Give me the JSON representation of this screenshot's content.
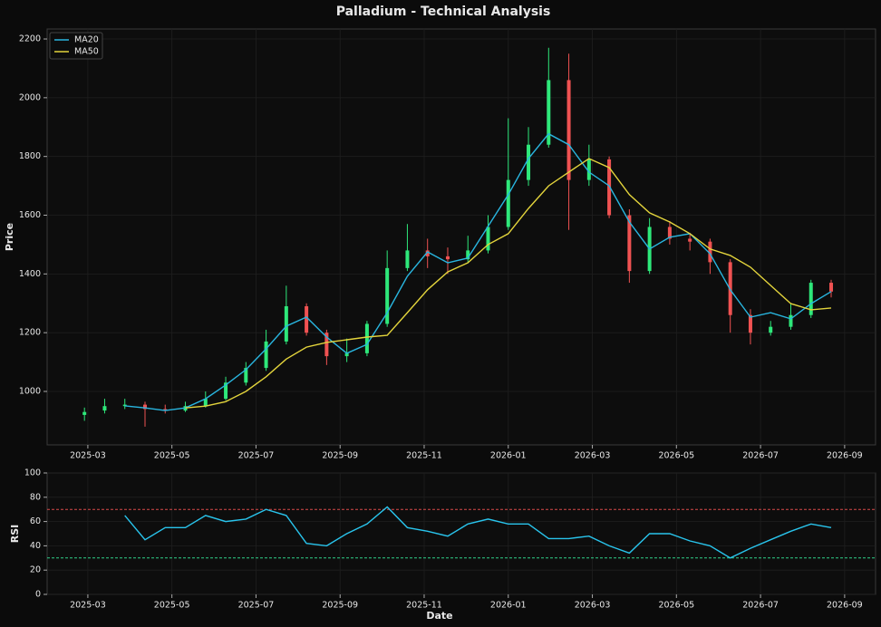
{
  "chart_data": [
    {
      "type": "candlestick",
      "title": "Palladium - Technical Analysis",
      "ylabel": "Price",
      "x": [
        2025.16,
        2025.2,
        2025.24,
        2025.28,
        2025.32,
        2025.36,
        2025.4,
        2025.44,
        2025.48,
        2025.52,
        2025.56,
        2025.6,
        2025.64,
        2025.68,
        2025.72,
        2025.76,
        2025.8,
        2025.84,
        2025.88,
        2025.92,
        2025.96,
        2026.0,
        2026.04,
        2026.08,
        2026.12,
        2026.16,
        2026.2,
        2026.24,
        2026.28,
        2026.32,
        2026.36,
        2026.4,
        2026.44,
        2026.48,
        2026.52,
        2026.56,
        2026.6,
        2026.64
      ],
      "open": [
        920,
        935,
        950,
        955,
        940,
        935,
        950,
        975,
        1030,
        1080,
        1170,
        1290,
        1200,
        1120,
        1130,
        1230,
        1420,
        1480,
        1460,
        1450,
        1480,
        1560,
        1720,
        1840,
        2060,
        1720,
        1790,
        1600,
        1410,
        1560,
        1520,
        1510,
        1440,
        1260,
        1200,
        1220,
        1260,
        1370
      ],
      "high": [
        945,
        975,
        975,
        965,
        955,
        965,
        1000,
        1050,
        1100,
        1210,
        1360,
        1300,
        1210,
        1180,
        1240,
        1480,
        1570,
        1520,
        1490,
        1530,
        1600,
        1930,
        1900,
        2170,
        2150,
        1840,
        1800,
        1620,
        1590,
        1580,
        1540,
        1520,
        1450,
        1280,
        1240,
        1300,
        1380,
        1380
      ],
      "low": [
        900,
        925,
        940,
        880,
        925,
        930,
        945,
        970,
        1020,
        1070,
        1160,
        1190,
        1090,
        1100,
        1120,
        1220,
        1410,
        1420,
        1400,
        1440,
        1470,
        1550,
        1700,
        1830,
        1550,
        1700,
        1590,
        1370,
        1400,
        1500,
        1480,
        1400,
        1200,
        1160,
        1190,
        1210,
        1250,
        1320
      ],
      "close": [
        930,
        950,
        955,
        940,
        935,
        950,
        975,
        1030,
        1080,
        1170,
        1290,
        1200,
        1120,
        1130,
        1230,
        1420,
        1480,
        1460,
        1450,
        1480,
        1560,
        1720,
        1840,
        2060,
        1720,
        1790,
        1600,
        1410,
        1560,
        1520,
        1510,
        1440,
        1260,
        1200,
        1220,
        1260,
        1370,
        1340
      ],
      "up_color": "#2ee87a",
      "down_color": "#f05252",
      "series": [
        {
          "name": "MA20",
          "color": "#29b6e0",
          "values": [
            null,
            null,
            951,
            944,
            935,
            944,
            975,
            1022,
            1074,
            1145,
            1222,
            1253,
            1185,
            1130,
            1160,
            1268,
            1392,
            1475,
            1438,
            1454,
            1562,
            1670,
            1793,
            1877,
            1840,
            1747,
            1700,
            1577,
            1485,
            1525,
            1537,
            1469,
            1346,
            1253,
            1268,
            1247,
            1299,
            1340
          ]
        },
        {
          "name": "MA50",
          "color": "#e3d43c",
          "values": [
            null,
            null,
            null,
            null,
            null,
            944,
            950,
            965,
            1000,
            1050,
            1110,
            1151,
            1167,
            1176,
            1185,
            1191,
            1268,
            1346,
            1407,
            1438,
            1500,
            1537,
            1623,
            1700,
            1747,
            1793,
            1762,
            1670,
            1608,
            1577,
            1537,
            1485,
            1463,
            1423,
            1361,
            1299,
            1278,
            1284
          ]
        }
      ],
      "legend": "upper left",
      "grid": true,
      "xlim": [
        2025.086,
        2026.728
      ],
      "ylim": [
        818,
        2234
      ],
      "xticks": [
        {
          "value": 2025.1667,
          "label": "2025-03"
        },
        {
          "value": 2025.3333,
          "label": "2025-05"
        },
        {
          "value": 2025.5,
          "label": "2025-07"
        },
        {
          "value": 2025.6667,
          "label": "2025-09"
        },
        {
          "value": 2025.8333,
          "label": "2025-11"
        },
        {
          "value": 2026.0,
          "label": "2026-01"
        },
        {
          "value": 2026.1667,
          "label": "2026-03"
        },
        {
          "value": 2026.3333,
          "label": "2026-05"
        },
        {
          "value": 2026.5,
          "label": "2026-07"
        },
        {
          "value": 2026.6667,
          "label": "2026-09"
        }
      ],
      "yticks": [
        1000,
        1200,
        1400,
        1600,
        1800,
        2000,
        2200
      ]
    },
    {
      "type": "line",
      "ylabel": "RSI",
      "xlabel": "Date",
      "color": "#29c4ec",
      "x": [
        2025.16,
        2025.2,
        2025.24,
        2025.28,
        2025.32,
        2025.36,
        2025.4,
        2025.44,
        2025.48,
        2025.52,
        2025.56,
        2025.6,
        2025.64,
        2025.68,
        2025.72,
        2025.76,
        2025.8,
        2025.84,
        2025.88,
        2025.92,
        2025.96,
        2026.0,
        2026.04,
        2026.08,
        2026.12,
        2026.16,
        2026.2,
        2026.24,
        2026.28,
        2026.32,
        2026.36,
        2026.4,
        2026.44,
        2026.48,
        2026.52,
        2026.56,
        2026.6,
        2026.64
      ],
      "values": [
        null,
        null,
        65,
        45,
        55,
        55,
        65,
        60,
        62,
        70,
        65,
        42,
        40,
        50,
        58,
        72,
        55,
        52,
        48,
        58,
        62,
        58,
        58,
        46,
        46,
        48,
        40,
        34,
        50,
        50,
        44,
        40,
        30,
        38,
        45,
        52,
        58,
        55
      ],
      "hlines": [
        {
          "value": 70,
          "color": "#d94b4b"
        },
        {
          "value": 30,
          "color": "#2ed18a"
        }
      ],
      "grid": true,
      "xlim": [
        2025.086,
        2026.728
      ],
      "ylim": [
        0,
        100
      ],
      "xticks": [
        {
          "value": 2025.1667,
          "label": "2025-03"
        },
        {
          "value": 2025.3333,
          "label": "2025-05"
        },
        {
          "value": 2025.5,
          "label": "2025-07"
        },
        {
          "value": 2025.6667,
          "label": "2025-09"
        },
        {
          "value": 2025.8333,
          "label": "2025-11"
        },
        {
          "value": 2026.0,
          "label": "2026-01"
        },
        {
          "value": 2026.1667,
          "label": "2026-03"
        },
        {
          "value": 2026.3333,
          "label": "2026-05"
        },
        {
          "value": 2026.5,
          "label": "2026-07"
        },
        {
          "value": 2026.6667,
          "label": "2026-09"
        }
      ],
      "yticks": [
        0,
        20,
        40,
        60,
        80,
        100
      ]
    }
  ]
}
